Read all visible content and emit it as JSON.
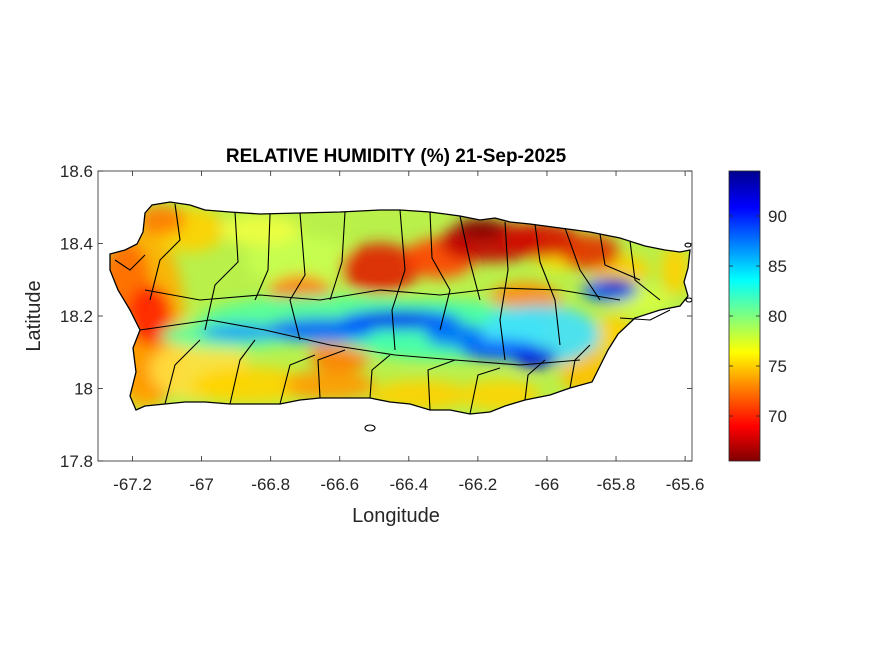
{
  "chart_data": {
    "type": "heatmap",
    "title": "RELATIVE HUMIDITY (%) 21-Sep-2025",
    "xlabel": "Longitude",
    "ylabel": "Latitude",
    "xlim": [
      -67.3,
      -65.58
    ],
    "ylim": [
      17.8,
      18.6
    ],
    "xticks": [
      -67.2,
      -67,
      -66.8,
      -66.6,
      -66.4,
      -66.2,
      -66,
      -65.8,
      -65.6
    ],
    "xtick_labels": [
      "-67.2",
      "-67",
      "-66.8",
      "-66.6",
      "-66.4",
      "-66.2",
      "-66",
      "-65.8",
      "-65.6"
    ],
    "yticks": [
      17.8,
      18,
      18.2,
      18.4,
      18.6
    ],
    "ytick_labels": [
      "17.8",
      "18",
      "18.2",
      "18.4",
      "18.6"
    ],
    "grid": false,
    "colormap": "jet-reversed",
    "colorbar": {
      "range": [
        65.5,
        94.5
      ],
      "ticks": [
        70,
        75,
        80,
        85,
        90
      ],
      "tick_labels": [
        "70",
        "75",
        "80",
        "85",
        "90"
      ],
      "low_color": "#800000",
      "high_color": "#00008f"
    },
    "humid_band_center_latitude": 18.15,
    "approx_humidity_range": [
      66,
      94
    ]
  }
}
